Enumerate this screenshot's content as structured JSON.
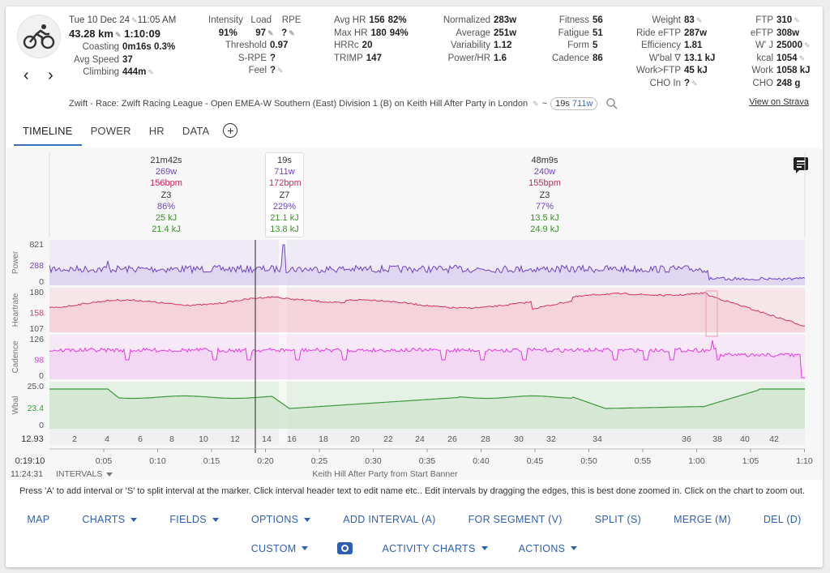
{
  "header": {
    "date": "Tue 10 Dec 24",
    "time": "11:05 AM",
    "distance": "43.28 km",
    "duration": "1:10:09",
    "coasting_label": "Coasting",
    "coasting_value": "0m16s 0.3%",
    "avg_speed_label": "Avg Speed",
    "avg_speed_value": "37",
    "climbing_label": "Climbing",
    "climbing_value": "444m",
    "intensity_label": "Intensity",
    "intensity_value": "91%",
    "load_label": "Load",
    "load_value": "97",
    "rpe_label": "RPE",
    "rpe_value": "?",
    "threshold_label": "Threshold",
    "threshold_value": "0.97",
    "srpe_label": "S-RPE",
    "srpe_value": "?",
    "feel_label": "Feel",
    "feel_value": "?",
    "avg_hr_label": "Avg HR",
    "avg_hr_value": "156",
    "avg_hr_pct": "82%",
    "max_hr_label": "Max HR",
    "max_hr_value": "180",
    "max_hr_pct": "94%",
    "hrrc_label": "HRRc",
    "hrrc_value": "20",
    "trimp_label": "TRIMP",
    "trimp_value": "147",
    "normalized_label": "Normalized",
    "normalized_value": "283w",
    "average_label": "Average",
    "average_value": "251w",
    "variability_label": "Variability",
    "variability_value": "1.12",
    "powerhr_label": "Power/HR",
    "powerhr_value": "1.6",
    "fitness_label": "Fitness",
    "fitness_value": "56",
    "fatigue_label": "Fatigue",
    "fatigue_value": "51",
    "form_label": "Form",
    "form_value": "5",
    "cadence_label": "Cadence",
    "cadence_value": "86",
    "weight_label": "Weight",
    "weight_value": "83",
    "ride_eftp_label": "Ride eFTP",
    "ride_eftp_value": "287w",
    "efficiency_label": "Efficiency",
    "efficiency_value": "1.81",
    "wbal_label": "W'bal ∇",
    "wbal_value": "13.1 kJ",
    "work_ftp_label": "Work>FTP",
    "work_ftp_value": "45 kJ",
    "cho_in_label": "CHO In",
    "cho_in_value": "?",
    "ftp_label": "FTP",
    "ftp_value": "310",
    "eftp_label": "eFTP",
    "eftp_value": "308w",
    "wj_label": "W' J",
    "wj_value": "25000",
    "kcal_label": "kcal",
    "kcal_value": "1054",
    "work_label": "Work",
    "work_value": "1058 kJ",
    "cho_label": "CHO",
    "cho_value": "248 g"
  },
  "description": {
    "text": "Zwift - Race: Zwift Racing League - Open EMEA-W Southern (East) Division 1 (B) on Keith Hill After Party in London",
    "tilde": "~",
    "chip_duration": "19s",
    "chip_power": "711w",
    "strava_link": "View on Strava"
  },
  "tabs": [
    "TIMELINE",
    "POWER",
    "HR",
    "DATA"
  ],
  "intervals": [
    {
      "dur": "21m42s",
      "w": "269w",
      "bpm": "156bpm",
      "zone": "Z3",
      "pct": "86%",
      "kj1": "25 kJ",
      "kj2": "21.4 kJ"
    },
    {
      "dur": "19s",
      "w": "711w",
      "bpm": "172bpm",
      "zone": "Z7",
      "pct": "229%",
      "kj1": "21.1 kJ",
      "kj2": "13.8 kJ"
    },
    {
      "dur": "48m9s",
      "w": "240w",
      "bpm": "155bpm",
      "zone": "Z3",
      "pct": "77%",
      "kj1": "13.5 kJ",
      "kj2": "24.9 kJ"
    }
  ],
  "panels": {
    "power": {
      "label": "Power",
      "ticks": [
        "821",
        "288",
        "0"
      ]
    },
    "hr": {
      "label": "Heartrate",
      "ticks": [
        "180",
        "158",
        "107"
      ]
    },
    "cadence": {
      "label": "Cadence",
      "ticks": [
        "126",
        "98",
        "0"
      ]
    },
    "wbal": {
      "label": "Wbal",
      "ticks": [
        "25.0",
        "23.4",
        "0"
      ]
    }
  },
  "distance_axis": {
    "start": "12.93",
    "ticks": [
      "2",
      "4",
      "6",
      "8",
      "10",
      "12",
      "14",
      "16",
      "18",
      "20",
      "22",
      "24",
      "26",
      "28",
      "30",
      "32",
      "34",
      "36",
      "38",
      "40",
      "42"
    ]
  },
  "time_axis": {
    "start": "0:19:10",
    "start_clock": "11:24:31",
    "ticks": [
      "0:05",
      "0:10",
      "0:15",
      "0:20",
      "0:25",
      "0:30",
      "0:35",
      "0:40",
      "0:45",
      "0:50",
      "0:55",
      "1:00",
      "1:05",
      "1:10"
    ],
    "intervals_menu": "INTERVALS",
    "segment_label": "Keith Hill After Party from Start Banner"
  },
  "hint": "Press 'A' to add interval or 'S' to split interval at the marker. Click interval header text to edit name etc.. Edit intervals by dragging the edges, this is best done zoomed in. Click on the chart to zoom out.",
  "buttons": {
    "map": "MAP",
    "charts": "CHARTS",
    "fields": "FIELDS",
    "options": "OPTIONS",
    "add_interval": "ADD INTERVAL (A)",
    "for_segment": "FOR SEGMENT (V)",
    "split": "SPLIT (S)",
    "merge": "MERGE (M)",
    "del": "DEL (D)",
    "custom": "CUSTOM",
    "activity_charts": "ACTIVITY CHARTS",
    "actions": "ACTIONS"
  },
  "colors": {
    "power": "#7043c2",
    "heartrate": "#d4345f",
    "cadence": "#e23be0",
    "wbal": "#3c9a3a",
    "accent": "#2f5fb3"
  }
}
